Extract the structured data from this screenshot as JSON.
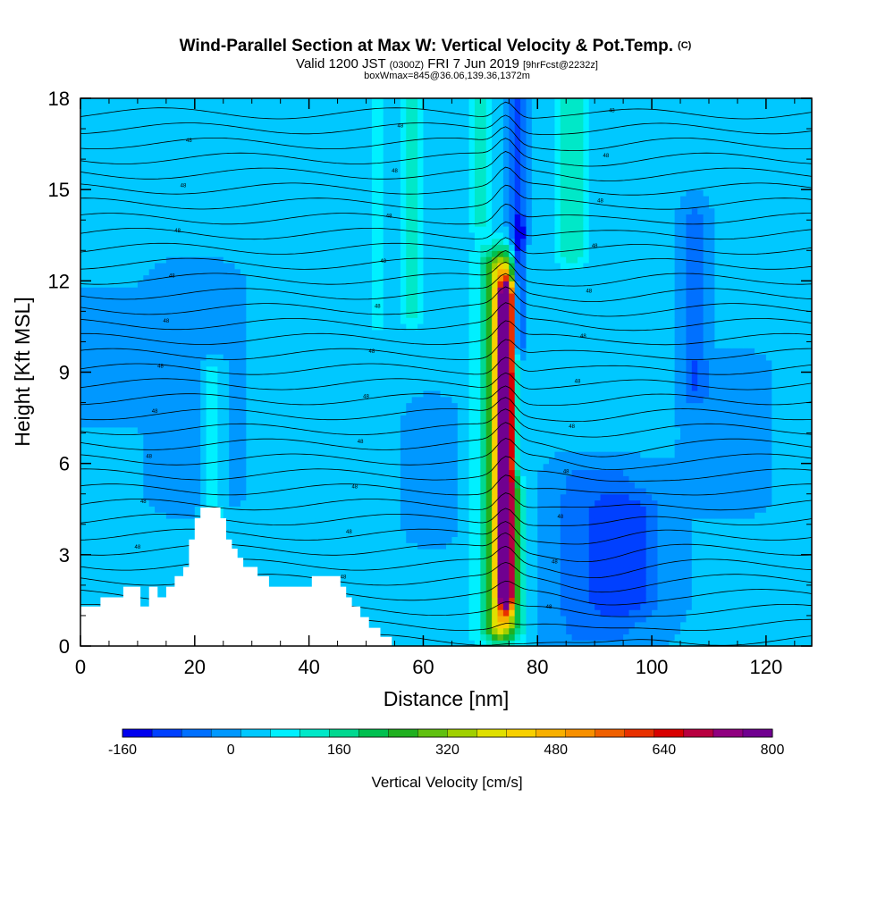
{
  "chart_data": {
    "type": "heatmap",
    "title": "Wind-Parallel Section at Max W: Vertical Velocity & Pot.Temp.",
    "title_mark": "(C)",
    "subtitle_parts": [
      "Valid 1200 JST ",
      "(0300Z)",
      " FRI 7 Jun 2019 ",
      "[9hrFcst@2232z]"
    ],
    "subtitle2": "boxWmax=845@36.06,139.36,1372m",
    "xlabel": "Distance [nm]",
    "ylabel": "Height [Kft MSL]",
    "xlim": [
      0,
      128
    ],
    "ylim": [
      0,
      18
    ],
    "x_ticks": [
      "0",
      "20",
      "40",
      "60",
      "80",
      "100",
      "120"
    ],
    "x_tick_values": [
      0,
      20,
      40,
      60,
      80,
      100,
      120
    ],
    "y_ticks": [
      "0",
      "3",
      "6",
      "9",
      "12",
      "15",
      "18"
    ],
    "y_tick_values": [
      0,
      3,
      6,
      9,
      12,
      15,
      18
    ],
    "grid": false,
    "colorbar": {
      "label": "Vertical Velocity [cm/s]",
      "tick_labels": [
        "-160",
        "0",
        "160",
        "320",
        "480",
        "640",
        "800"
      ],
      "tick_values": [
        -160,
        0,
        160,
        320,
        480,
        640,
        800
      ],
      "colors": [
        "#0000ee",
        "#0040ff",
        "#0070ff",
        "#0098ff",
        "#00c8ff",
        "#00f0ff",
        "#00e8c8",
        "#00d890",
        "#00c050",
        "#20b020",
        "#60c010",
        "#a0d000",
        "#e0e000",
        "#f8d000",
        "#f8b000",
        "#f89000",
        "#f06000",
        "#e83000",
        "#d80000",
        "#b80040",
        "#900080",
        "#700090"
      ]
    },
    "background_w": 20,
    "max_w": {
      "value_cm_s": 845,
      "lat": 36.06,
      "lon": 139.36,
      "height_m": 1372
    },
    "w_features": [
      {
        "kind": "updraft",
        "x": 74.5,
        "y0": 1.8,
        "y1": 11.4,
        "halfwidth": 1.2,
        "w": 760
      },
      {
        "kind": "updraft",
        "x": 73.8,
        "y0": 0.8,
        "y1": 12.3,
        "halfwidth": 2.6,
        "w": 280
      },
      {
        "kind": "updraft",
        "x": 73.5,
        "y0": 0.5,
        "y1": 12.8,
        "halfwidth": 4.5,
        "w": 140
      },
      {
        "kind": "downdraft",
        "x": 76.5,
        "y0": 6.0,
        "y1": 18.0,
        "halfwidth": 1.5,
        "w": -110
      },
      {
        "kind": "downdraft",
        "x": 76.8,
        "y0": 10.0,
        "y1": 13.5,
        "halfwidth": 1.0,
        "w": -150
      },
      {
        "kind": "downdraft",
        "x": 90.0,
        "y0": 0.5,
        "y1": 5.5,
        "halfwidth": 9.0,
        "w": -70
      },
      {
        "kind": "downdraft",
        "x": 96.0,
        "y0": 1.5,
        "y1": 4.5,
        "halfwidth": 6.0,
        "w": -80
      },
      {
        "kind": "downdraft",
        "x": 107.5,
        "y0": 8.5,
        "y1": 14.0,
        "halfwidth": 2.0,
        "w": -80
      },
      {
        "kind": "downdraft",
        "x": 20.0,
        "y0": 5.0,
        "y1": 12.0,
        "halfwidth": 6.0,
        "w": -45
      },
      {
        "kind": "downdraft",
        "x": 5.0,
        "y0": 8.0,
        "y1": 11.0,
        "halfwidth": 6.0,
        "w": -40
      },
      {
        "kind": "downdraft",
        "x": 113.0,
        "y0": 5.0,
        "y1": 9.0,
        "halfwidth": 6.0,
        "w": -40
      },
      {
        "kind": "downdraft",
        "x": 62.0,
        "y0": 4.0,
        "y1": 7.5,
        "halfwidth": 4.0,
        "w": -40
      },
      {
        "kind": "updraft",
        "x": 86.0,
        "y0": 13.0,
        "y1": 18.0,
        "halfwidth": 3.0,
        "w": 110
      },
      {
        "kind": "updraft",
        "x": 58.0,
        "y0": 11.0,
        "y1": 18.0,
        "halfwidth": 1.8,
        "w": 110
      },
      {
        "kind": "updraft",
        "x": 52.0,
        "y0": 11.0,
        "y1": 18.0,
        "halfwidth": 1.5,
        "w": 90
      },
      {
        "kind": "updraft",
        "x": 23.0,
        "y0": 4.5,
        "y1": 9.0,
        "halfwidth": 2.0,
        "w": 90
      },
      {
        "kind": "updraft",
        "x": 70.0,
        "y0": 14.0,
        "y1": 18.0,
        "halfwidth": 2.0,
        "w": 90
      }
    ],
    "terrain": [
      {
        "x": 0,
        "h": 1.3
      },
      {
        "x": 3.5,
        "h": 1.3
      },
      {
        "x": 3.5,
        "h": 1.6
      },
      {
        "x": 7.5,
        "h": 1.6
      },
      {
        "x": 7.5,
        "h": 1.95
      },
      {
        "x": 10.5,
        "h": 1.95
      },
      {
        "x": 10.5,
        "h": 1.3
      },
      {
        "x": 12,
        "h": 1.3
      },
      {
        "x": 12,
        "h": 1.95
      },
      {
        "x": 13.5,
        "h": 1.95
      },
      {
        "x": 13.5,
        "h": 1.6
      },
      {
        "x": 15,
        "h": 1.6
      },
      {
        "x": 15,
        "h": 1.95
      },
      {
        "x": 16.5,
        "h": 1.95
      },
      {
        "x": 16.5,
        "h": 2.3
      },
      {
        "x": 18,
        "h": 2.3
      },
      {
        "x": 18,
        "h": 2.6
      },
      {
        "x": 19,
        "h": 2.6
      },
      {
        "x": 19,
        "h": 3.5
      },
      {
        "x": 20,
        "h": 3.5
      },
      {
        "x": 20,
        "h": 4.2
      },
      {
        "x": 21,
        "h": 4.2
      },
      {
        "x": 21,
        "h": 4.55
      },
      {
        "x": 24.5,
        "h": 4.55
      },
      {
        "x": 24.5,
        "h": 4.2
      },
      {
        "x": 25.5,
        "h": 4.2
      },
      {
        "x": 25.5,
        "h": 3.5
      },
      {
        "x": 26.5,
        "h": 3.5
      },
      {
        "x": 26.5,
        "h": 3.2
      },
      {
        "x": 27.5,
        "h": 3.2
      },
      {
        "x": 27.5,
        "h": 2.9
      },
      {
        "x": 28.5,
        "h": 2.9
      },
      {
        "x": 28.5,
        "h": 2.6
      },
      {
        "x": 31,
        "h": 2.6
      },
      {
        "x": 31,
        "h": 2.3
      },
      {
        "x": 33,
        "h": 2.3
      },
      {
        "x": 33,
        "h": 1.95
      },
      {
        "x": 40.5,
        "h": 1.95
      },
      {
        "x": 40.5,
        "h": 2.3
      },
      {
        "x": 45.5,
        "h": 2.3
      },
      {
        "x": 45.5,
        "h": 1.95
      },
      {
        "x": 46.5,
        "h": 1.95
      },
      {
        "x": 46.5,
        "h": 1.6
      },
      {
        "x": 47.5,
        "h": 1.6
      },
      {
        "x": 47.5,
        "h": 1.3
      },
      {
        "x": 49,
        "h": 1.3
      },
      {
        "x": 49,
        "h": 0.95
      },
      {
        "x": 50.5,
        "h": 0.95
      },
      {
        "x": 50.5,
        "h": 0.6
      },
      {
        "x": 52.5,
        "h": 0.6
      },
      {
        "x": 52.5,
        "h": 0.3
      },
      {
        "x": 54.5,
        "h": 0.3
      },
      {
        "x": 54.5,
        "h": 0
      }
    ],
    "theta_contour_count": 36,
    "theta_label_text": "48"
  }
}
